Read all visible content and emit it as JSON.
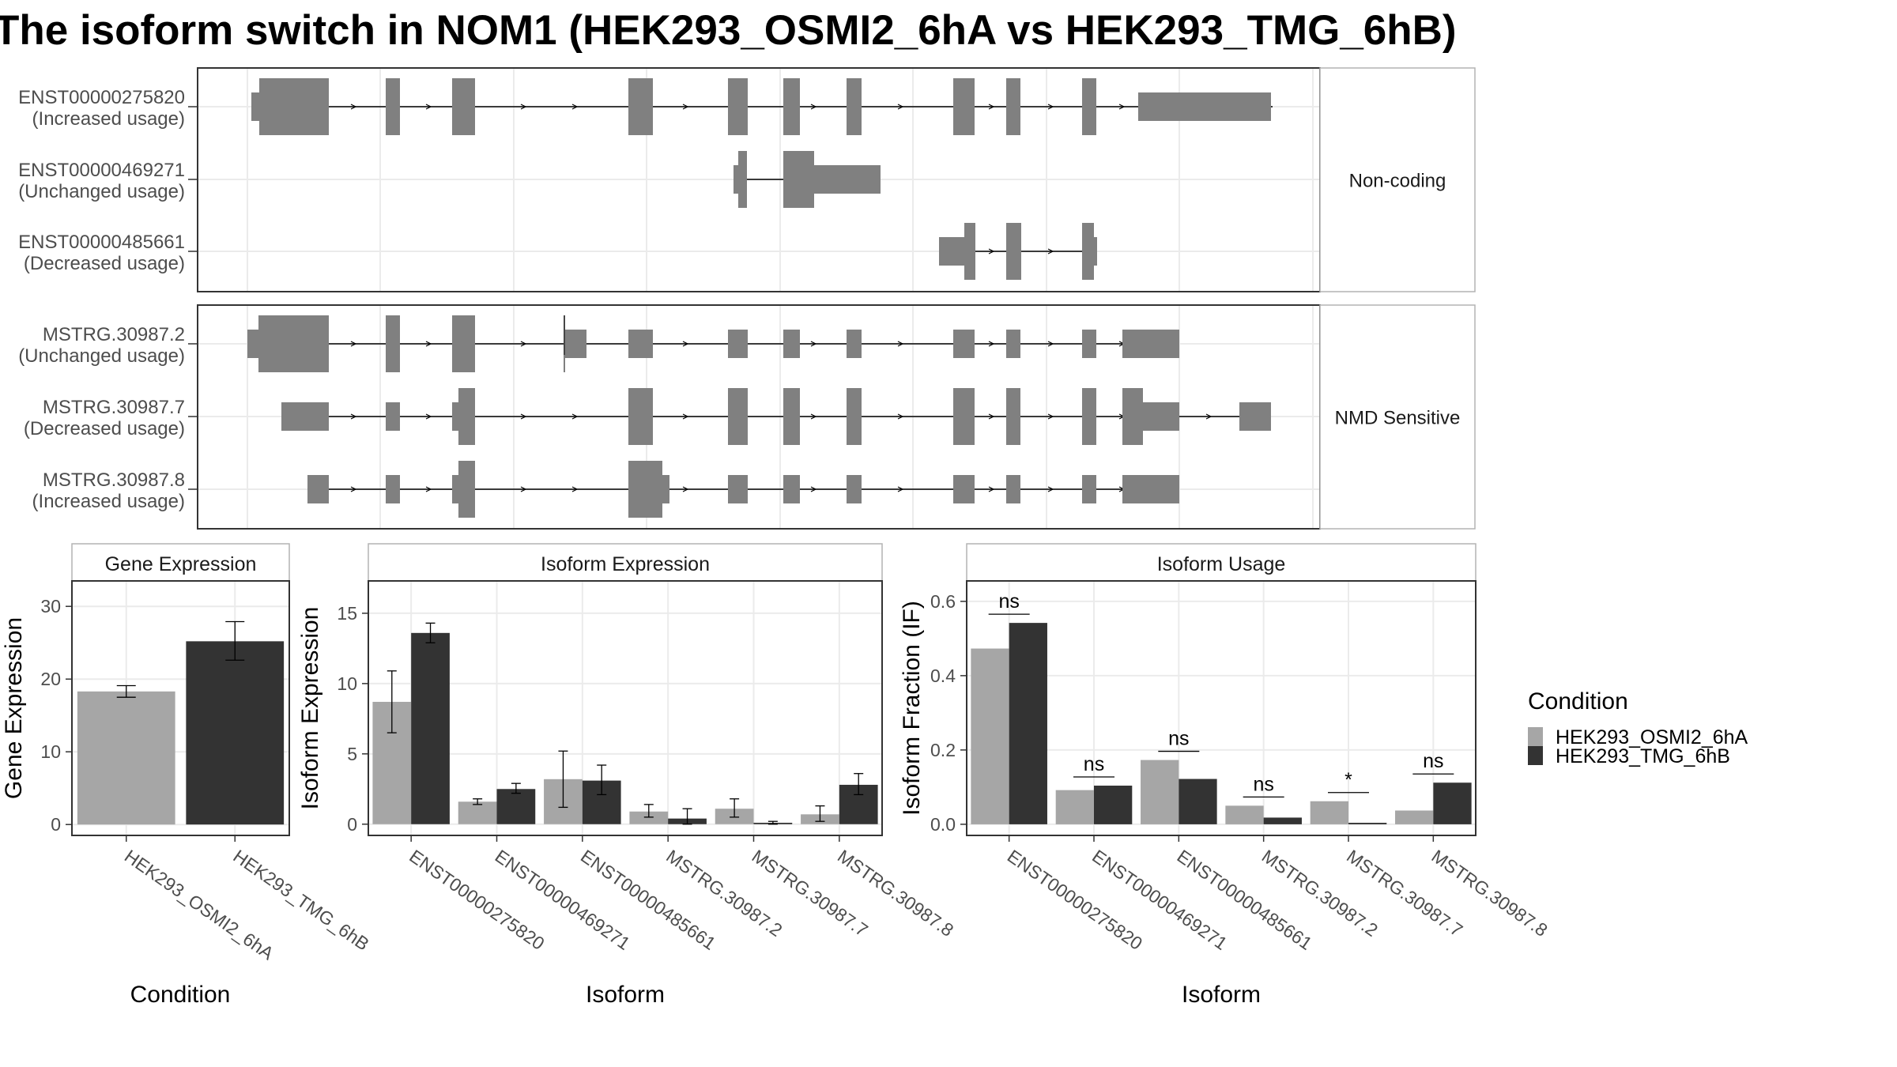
{
  "title": "The isoform switch in NOM1 (HEK293_OSMI2_6hA vs HEK293_TMG_6hB)",
  "colors": {
    "cond_a": "#a6a6a6",
    "cond_b": "#333333",
    "exon": "#808080",
    "strip_bg": "#ffffff",
    "grid": "#ebebeb"
  },
  "structure": {
    "groups": [
      {
        "label": "Non-coding",
        "isoforms": [
          {
            "id": "ENST00000275820",
            "usage": "(Increased usage)"
          },
          {
            "id": "ENST00000469271",
            "usage": "(Unchanged usage)"
          },
          {
            "id": "ENST00000485661",
            "usage": "(Decreased usage)"
          }
        ]
      },
      {
        "label": "NMD Sensitive",
        "isoforms": [
          {
            "id": "MSTRG.30987.2",
            "usage": "(Unchanged usage)"
          },
          {
            "id": "MSTRG.30987.7",
            "usage": "(Decreased usage)"
          },
          {
            "id": "MSTRG.30987.8",
            "usage": "(Increased usage)"
          }
        ]
      }
    ]
  },
  "legend": {
    "title": "Condition",
    "items": [
      "HEK293_OSMI2_6hA",
      "HEK293_TMG_6hB"
    ]
  },
  "chart_data": [
    {
      "type": "bar",
      "title": "Gene Expression",
      "xlabel": "Condition",
      "ylabel": "Gene Expression",
      "categories": [
        "HEK293_OSMI2_6hA",
        "HEK293_TMG_6hB"
      ],
      "values": [
        18.3,
        25.2
      ],
      "error_low": [
        17.5,
        22.6
      ],
      "error_high": [
        19.1,
        27.9
      ],
      "ylim": [
        -1.5,
        33.5
      ],
      "yticks": [
        0,
        10,
        20,
        30
      ]
    },
    {
      "type": "bar",
      "title": "Isoform Expression",
      "xlabel": "Isoform",
      "ylabel": "Isoform Expression",
      "categories": [
        "ENST00000275820",
        "ENST00000469271",
        "ENST00000485661",
        "MSTRG.30987.2",
        "MSTRG.30987.7",
        "MSTRG.30987.8"
      ],
      "series": [
        {
          "name": "HEK293_OSMI2_6hA",
          "values": [
            8.7,
            1.6,
            3.2,
            0.9,
            1.1,
            0.7
          ],
          "error_low": [
            6.5,
            1.4,
            1.2,
            0.5,
            0.5,
            0.2
          ],
          "error_high": [
            10.9,
            1.8,
            5.2,
            1.4,
            1.8,
            1.3
          ]
        },
        {
          "name": "HEK293_TMG_6hB",
          "values": [
            13.6,
            2.5,
            3.1,
            0.4,
            0.1,
            2.8
          ],
          "error_low": [
            12.9,
            2.2,
            2.1,
            0.0,
            0.0,
            2.1
          ],
          "error_high": [
            14.3,
            2.9,
            4.2,
            1.1,
            0.2,
            3.6
          ]
        }
      ],
      "ylim": [
        -0.8,
        17.3
      ],
      "yticks": [
        0,
        5,
        10,
        15
      ]
    },
    {
      "type": "bar",
      "title": "Isoform Usage",
      "xlabel": "Isoform",
      "ylabel": "Isoform Fraction (IF)",
      "categories": [
        "ENST00000275820",
        "ENST00000469271",
        "ENST00000485661",
        "MSTRG.30987.2",
        "MSTRG.30987.7",
        "MSTRG.30987.8"
      ],
      "series": [
        {
          "name": "HEK293_OSMI2_6hA",
          "values": [
            0.473,
            0.092,
            0.173,
            0.05,
            0.062,
            0.037
          ]
        },
        {
          "name": "HEK293_TMG_6hB",
          "values": [
            0.542,
            0.104,
            0.122,
            0.018,
            0.004,
            0.112
          ]
        }
      ],
      "significance": [
        "ns",
        "ns",
        "ns",
        "ns",
        "*",
        "ns"
      ],
      "ylim": [
        -0.03,
        0.655
      ],
      "yticks": [
        "0.0",
        "0.2",
        "0.4",
        "0.6"
      ]
    }
  ]
}
